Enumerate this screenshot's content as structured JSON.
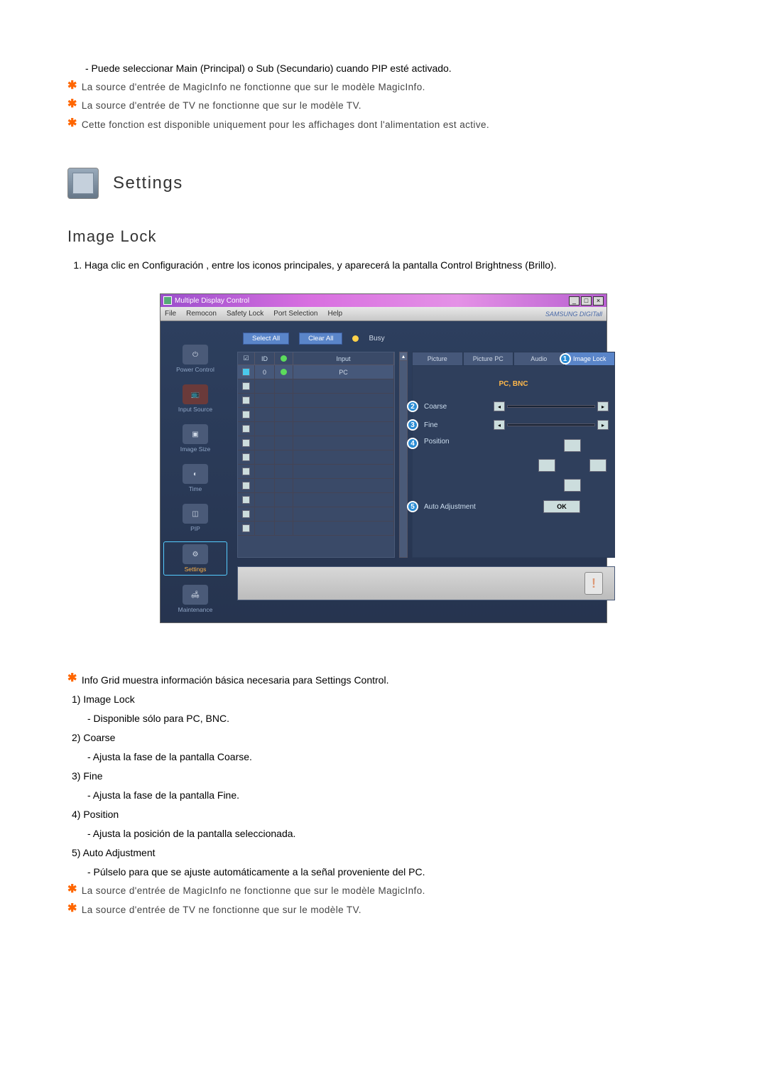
{
  "intro": {
    "pip_sub": "- Puede seleccionar Main (Principal) o Sub (Secundario) cuando PIP esté activado.",
    "star1": "La source d'entrée de MagicInfo ne fonctionne que sur le modèle MagicInfo.",
    "star2": "La source d'entrée de TV ne fonctionne que sur le modèle TV.",
    "star3": "Cette fonction est disponible uniquement pour les affichages dont l'alimentation est active."
  },
  "settings_header": "Settings",
  "subheading": "Image Lock",
  "step1": "Haga clic en Configuración , entre los iconos principales, y aparecerá la pantalla Control Brightness (Brillo).",
  "app_window": {
    "title": "Multiple Display Control",
    "menus": [
      "File",
      "Remocon",
      "Safety Lock",
      "Port Selection",
      "Help"
    ],
    "brand": "SAMSUNG DIGITall",
    "sidebar": [
      {
        "label": "Power Control"
      },
      {
        "label": "Input Source"
      },
      {
        "label": "Image Size"
      },
      {
        "label": "Time"
      },
      {
        "label": "PIP"
      },
      {
        "label": "Settings",
        "selected": true
      },
      {
        "label": "Maintenance"
      }
    ],
    "buttons": {
      "select_all": "Select All",
      "clear_all": "Clear All",
      "busy": "Busy"
    },
    "grid": {
      "headers": {
        "chk": "☑",
        "id": "ID",
        "st": "",
        "input": "Input"
      },
      "first_row": {
        "id": "0",
        "input": "PC"
      },
      "blank_rows": 11
    },
    "tabs": [
      "Picture",
      "Picture PC",
      "Audio",
      "Image Lock"
    ],
    "active_tab_index": 3,
    "panel": {
      "source_line": "PC, BNC",
      "coarse": "Coarse",
      "fine": "Fine",
      "position": "Position",
      "auto_adjust": "Auto Adjustment",
      "ok": "OK"
    },
    "markers": {
      "c1": "1",
      "c2": "2",
      "c3": "3",
      "c4": "4",
      "c5": "5"
    }
  },
  "footer": {
    "star_info": "Info Grid muestra información básica necesaria para Settings Control.",
    "items": [
      {
        "num": "1) Image Lock",
        "sub": "- Disponible sólo para PC, BNC."
      },
      {
        "num": "2) Coarse",
        "sub": "- Ajusta la fase de la pantalla Coarse."
      },
      {
        "num": "3) Fine",
        "sub": "- Ajusta la fase de la pantalla Fine."
      },
      {
        "num": "4) Position",
        "sub": "- Ajusta la posición de la pantalla seleccionada."
      },
      {
        "num": "5) Auto Adjustment",
        "sub": "- Púlselo para que se ajuste automáticamente a la señal proveniente del PC."
      }
    ],
    "star_a": "La source d'entrée de MagicInfo ne fonctionne que sur le modèle MagicInfo.",
    "star_b": "La source d'entrée de TV ne fonctionne que sur le modèle TV."
  }
}
